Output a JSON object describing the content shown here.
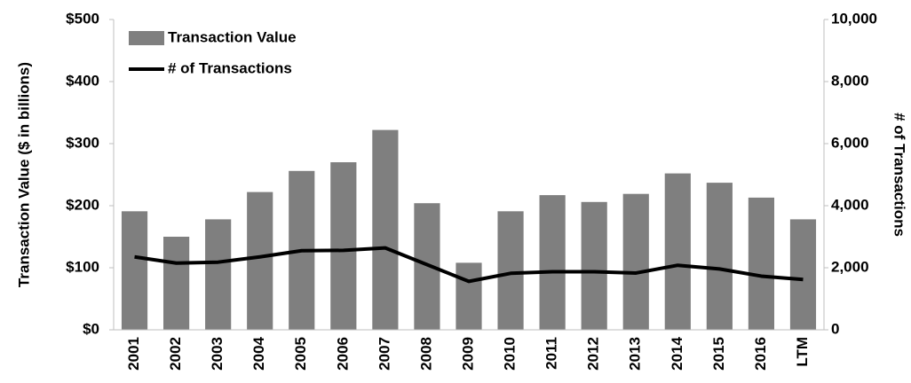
{
  "chart_data": {
    "type": "bar_line",
    "categories": [
      "2001",
      "2002",
      "2003",
      "2004",
      "2005",
      "2006",
      "2007",
      "2008",
      "2009",
      "2010",
      "2011",
      "2012",
      "2013",
      "2014",
      "2015",
      "2016",
      "LTM"
    ],
    "series": [
      {
        "name": "Transaction Value",
        "type": "bar",
        "color": "#7f7f7f",
        "axis": "y",
        "values": [
          191,
          150,
          178,
          222,
          256,
          270,
          322,
          204,
          108,
          191,
          217,
          206,
          219,
          252,
          237,
          213,
          178
        ]
      },
      {
        "name": "# of Transactions",
        "type": "line",
        "color": "#000000",
        "axis": "y2",
        "values": [
          2350,
          2150,
          2180,
          2350,
          2550,
          2560,
          2640,
          2100,
          1560,
          1820,
          1870,
          1870,
          1830,
          2080,
          1960,
          1730,
          1620
        ]
      }
    ],
    "y_label": "Transaction Value ($ in billions)",
    "y2_label": "# of Transactions",
    "ylim": [
      0,
      500
    ],
    "yticks": [
      {
        "value": 0,
        "label": "$0"
      },
      {
        "value": 100,
        "label": "$100"
      },
      {
        "value": 200,
        "label": "$200"
      },
      {
        "value": 300,
        "label": "$300"
      },
      {
        "value": 400,
        "label": "$400"
      },
      {
        "value": 500,
        "label": "$500"
      }
    ],
    "y2lim": [
      0,
      10000
    ],
    "y2ticks": [
      0,
      {
        "value": 2000,
        "label": "2,000"
      },
      {
        "value": 4000,
        "label": "4,000"
      },
      {
        "value": 6000,
        "label": "6,000"
      },
      {
        "value": 8000,
        "label": "8,000"
      },
      {
        "value": 10000,
        "label": "10,000"
      }
    ],
    "legend": "top-left"
  }
}
